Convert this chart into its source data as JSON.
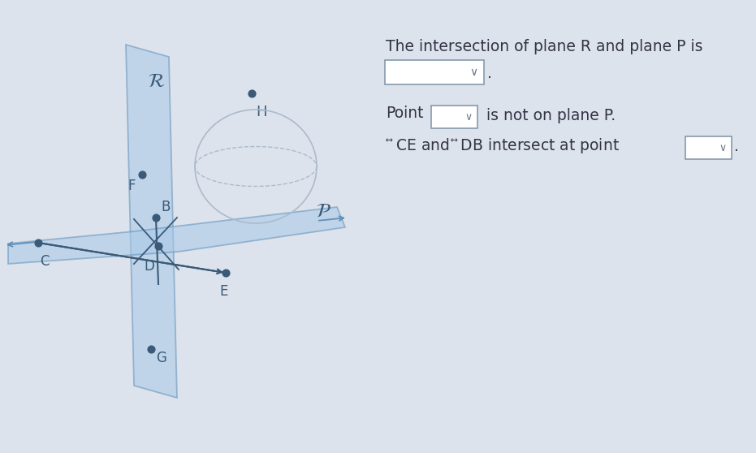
{
  "bg_color": "#dde3ec",
  "plane_color": "#a8c8e8",
  "plane_edge_color": "#6090b8",
  "point_color": "#3a5a78",
  "text_color": "#555577",
  "figsize": [
    9.31,
    5.58
  ],
  "dpi": 100,
  "title": "The intersection of plane R and plane P is",
  "line2a": "Point",
  "line2b": " is not on plane P.",
  "line3a": " and ",
  "line3b": " intersect at point"
}
